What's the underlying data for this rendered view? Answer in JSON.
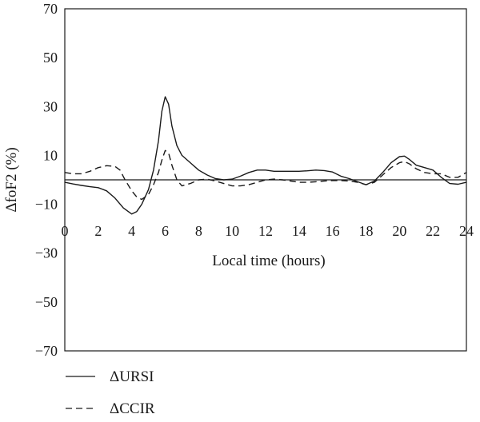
{
  "chart_data": {
    "type": "line",
    "title": "",
    "xlabel": "Local time (hours)",
    "ylabel": "ΔfoF2 (%)",
    "xlim": [
      0,
      24
    ],
    "ylim": [
      -70,
      70
    ],
    "x_ticks": [
      "0",
      "2",
      "4",
      "6",
      "8",
      "10",
      "12",
      "14",
      "16",
      "18",
      "20",
      "22",
      "24"
    ],
    "y_ticks": [
      "70",
      "50",
      "30",
      "10",
      "-10",
      "-30",
      "-50",
      "-70"
    ],
    "zero_line": true,
    "grid": false,
    "legend_position": "bottom-left",
    "series": [
      {
        "name": "ΔURSI",
        "style": "solid",
        "x": [
          0,
          0.5,
          1,
          1.5,
          2,
          2.5,
          3,
          3.5,
          4,
          4.3,
          4.6,
          5,
          5.3,
          5.6,
          5.8,
          6,
          6.2,
          6.4,
          6.7,
          7,
          7.5,
          8,
          8.5,
          9,
          9.5,
          10,
          10.5,
          11,
          11.5,
          12,
          12.5,
          13,
          13.5,
          14,
          14.5,
          15,
          15.5,
          16,
          16.5,
          17,
          17.5,
          18,
          18.5,
          19,
          19.5,
          20,
          20.3,
          20.6,
          21,
          21.5,
          22,
          22.5,
          23,
          23.5,
          24
        ],
        "y": [
          -1,
          -1.7,
          -2.3,
          -2.8,
          -3.2,
          -4.5,
          -7.5,
          -11.5,
          -14,
          -13,
          -10,
          -4,
          4,
          16,
          28,
          34,
          31,
          22,
          14,
          10,
          7,
          4,
          2,
          0.5,
          0,
          0.3,
          1.5,
          3,
          4,
          4,
          3.5,
          3.5,
          3.5,
          3.5,
          3.7,
          4,
          3.8,
          3.2,
          1.5,
          0.5,
          -0.8,
          -2,
          -0.5,
          3,
          7,
          9.5,
          9.7,
          8.3,
          6,
          5,
          4,
          1,
          -1.5,
          -1.8,
          -1
        ]
      },
      {
        "name": "ΔCCIR",
        "style": "dashed",
        "x": [
          0,
          0.5,
          1,
          1.5,
          2,
          2.5,
          3,
          3.3,
          3.6,
          4,
          4.3,
          4.6,
          5,
          5.3,
          5.6,
          5.8,
          6,
          6.2,
          6.4,
          6.7,
          7,
          7.5,
          8,
          8.5,
          9,
          9.5,
          10,
          10.5,
          11,
          11.5,
          12,
          12.5,
          13,
          13.5,
          14,
          14.5,
          15,
          15.5,
          16,
          16.5,
          17,
          17.5,
          18,
          18.5,
          19,
          19.5,
          20,
          20.3,
          20.6,
          21,
          21.5,
          22,
          22.5,
          23,
          23.5,
          24
        ],
        "y": [
          3,
          2.5,
          2.5,
          3.5,
          5,
          5.8,
          5.5,
          4,
          0,
          -4.5,
          -7,
          -8,
          -6,
          -2,
          3,
          8,
          12,
          11,
          6,
          0,
          -2.5,
          -1.5,
          0,
          0.3,
          -0.5,
          -1.5,
          -2.5,
          -2.5,
          -2,
          -1,
          0,
          0.3,
          0,
          -0.5,
          -1,
          -1,
          -0.8,
          -0.5,
          -0.3,
          -0.3,
          -0.5,
          -1,
          -2,
          -1,
          2,
          5,
          7,
          7.5,
          6.5,
          4.5,
          3,
          2.5,
          2.5,
          1,
          1,
          3
        ]
      }
    ]
  }
}
